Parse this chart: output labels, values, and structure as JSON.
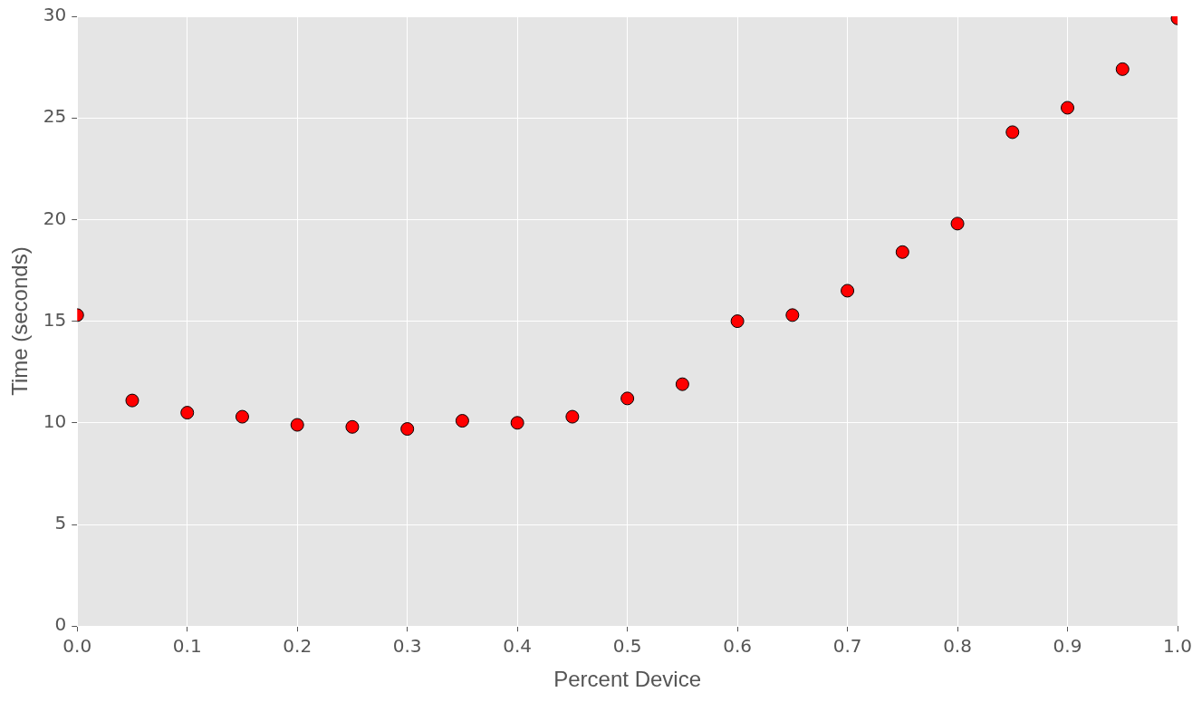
{
  "chart_data": {
    "type": "scatter",
    "xlabel": "Percent Device",
    "ylabel": "Time (seconds)",
    "x": [
      0.0,
      0.05,
      0.1,
      0.15,
      0.2,
      0.25,
      0.3,
      0.35,
      0.4,
      0.45,
      0.5,
      0.55,
      0.6,
      0.65,
      0.7,
      0.75,
      0.8,
      0.85,
      0.9,
      0.95,
      1.0
    ],
    "series": [
      {
        "color": "#ff0000",
        "values": [
          15.3,
          11.1,
          10.5,
          10.3,
          9.9,
          9.8,
          9.7,
          10.1,
          10.0,
          10.3,
          11.2,
          11.9,
          15.0,
          15.3,
          16.5,
          18.4,
          19.8,
          24.3,
          25.5,
          27.4,
          29.9
        ]
      }
    ],
    "xlim": [
      0,
      1
    ],
    "xticks": [
      {
        "value": 0,
        "label": "0.0"
      },
      0.1,
      0.2,
      0.3,
      0.4,
      0.5,
      0.6,
      0.7,
      0.8,
      0.9,
      {
        "value": 1,
        "label": "1.0"
      }
    ],
    "ylim": [
      0,
      30
    ],
    "yticks": [
      0,
      5,
      10,
      15,
      20,
      25,
      30
    ],
    "grid": true,
    "marker": "circle",
    "legend": false
  }
}
